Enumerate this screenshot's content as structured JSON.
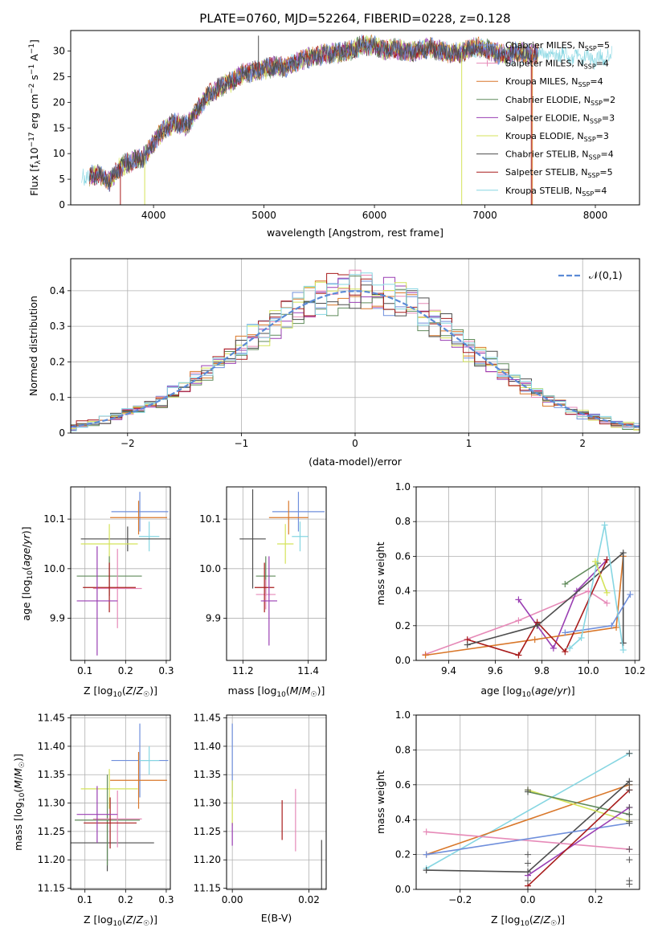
{
  "figure_title": "PLATE=0760, MJD=52264, FIBERID=0228, z=0.128",
  "colors": {
    "chabrier_miles": "#6f8fdc",
    "salpeter_miles": "#e68ab8",
    "kroupa_miles": "#d9772a",
    "chabrier_elodie": "#5f8a5a",
    "salpeter_elodie": "#9a3fb3",
    "kroupa_elodie": "#d4e35a",
    "chabrier_stelib": "#4d4d4d",
    "salpeter_stelib": "#a81c1c",
    "kroupa_stelib": "#86d6e2",
    "normal": "#5b8ad6",
    "grid": "#b0b0b0"
  },
  "chart_data": [
    {
      "id": "spectrum",
      "type": "line",
      "title": "PLATE=0760, MJD=52264, FIBERID=0228, z=0.128",
      "xlabel": "wavelength [Angstrom, rest frame]",
      "ylabel_parts": [
        "Flux [f",
        "λ",
        "10",
        "−17",
        " erg cm",
        "−2",
        " s",
        "−1",
        " A",
        "−1",
        "]"
      ],
      "xlim": [
        3250,
        8400
      ],
      "ylim": [
        0,
        34
      ],
      "xticks": [
        4000,
        5000,
        6000,
        7000,
        8000
      ],
      "yticks": [
        0,
        5,
        10,
        15,
        20,
        25,
        30
      ],
      "grid": false,
      "legend_position": "top-right",
      "legend": [
        {
          "label": "Chabrier MILES, N",
          "sub": "SSP",
          "value": "=5",
          "color": "#6f8fdc",
          "marker": "plus"
        },
        {
          "label": "Salpeter MILES, N",
          "sub": "SSP",
          "value": "=4",
          "color": "#e68ab8",
          "marker": "plus"
        },
        {
          "label": "Kroupa MILES, N",
          "sub": "SSP",
          "value": "=4",
          "color": "#d9772a"
        },
        {
          "label": "Chabrier ELODIE, N",
          "sub": "SSP",
          "value": "=2",
          "color": "#5f8a5a"
        },
        {
          "label": "Salpeter ELODIE, N",
          "sub": "SSP",
          "value": "=3",
          "color": "#9a3fb3"
        },
        {
          "label": "Kroupa ELODIE, N",
          "sub": "SSP",
          "value": "=3",
          "color": "#d4e35a"
        },
        {
          "label": "Chabrier STELIB, N",
          "sub": "SSP",
          "value": "=4",
          "color": "#4d4d4d"
        },
        {
          "label": "Salpeter STELIB, N",
          "sub": "SSP",
          "value": "=5",
          "color": "#a81c1c"
        },
        {
          "label": "Kroupa STELIB, N",
          "sub": "SSP",
          "value": "=4",
          "color": "#86d6e2"
        }
      ],
      "continuum": [
        [
          3350,
          5.4
        ],
        [
          3500,
          6
        ],
        [
          3600,
          4.5
        ],
        [
          3700,
          7.5
        ],
        [
          3800,
          8.5
        ],
        [
          3900,
          9
        ],
        [
          4000,
          12
        ],
        [
          4100,
          15
        ],
        [
          4200,
          16
        ],
        [
          4300,
          15.5
        ],
        [
          4400,
          18.5
        ],
        [
          4500,
          21.5
        ],
        [
          4600,
          23
        ],
        [
          4700,
          24
        ],
        [
          4800,
          25.5
        ],
        [
          4900,
          26
        ],
        [
          5000,
          26.5
        ],
        [
          5100,
          27
        ],
        [
          5200,
          26.8
        ],
        [
          5300,
          28
        ],
        [
          5400,
          28.6
        ],
        [
          5500,
          29.2
        ],
        [
          5600,
          29.5
        ],
        [
          5700,
          29.8
        ],
        [
          5800,
          30.2
        ],
        [
          5900,
          31.2
        ],
        [
          6000,
          31
        ],
        [
          6100,
          30.2
        ],
        [
          6200,
          30.4
        ],
        [
          6300,
          29.8
        ],
        [
          6400,
          30.2
        ],
        [
          6500,
          30.6
        ],
        [
          6600,
          30
        ],
        [
          6700,
          29.5
        ],
        [
          6800,
          29.8
        ],
        [
          6900,
          30.8
        ],
        [
          7000,
          30.5
        ],
        [
          7100,
          29.6
        ],
        [
          7200,
          29.2
        ],
        [
          7300,
          29.8
        ],
        [
          7400,
          29.3
        ],
        [
          7500,
          29.5
        ],
        [
          7600,
          29.6
        ],
        [
          7700,
          29.1
        ],
        [
          7800,
          28.6
        ],
        [
          7900,
          28.5
        ],
        [
          8000,
          28.3
        ],
        [
          8100,
          28.9
        ],
        [
          8150,
          29.2
        ]
      ],
      "spikes": [
        [
          3700,
          0
        ],
        [
          3920,
          0
        ],
        [
          4950,
          33
        ],
        [
          6790,
          0
        ],
        [
          7420,
          0
        ],
        [
          7430,
          0
        ]
      ]
    },
    {
      "id": "residuals",
      "type": "line",
      "xlabel": "(data-model)/error",
      "ylabel": "Normed distribution",
      "xlim": [
        -2.5,
        2.5
      ],
      "ylim": [
        0,
        0.49
      ],
      "xticks": [
        -2,
        -1,
        0,
        1,
        2
      ],
      "yticks": [
        0.0,
        0.1,
        0.2,
        0.3,
        0.4
      ],
      "grid": true,
      "legend_position": "top-right",
      "legend": [
        {
          "label": "𝒩(0,1)",
          "color": "#5b8ad6",
          "style": "dashed"
        }
      ],
      "normal": {
        "mean": 0,
        "sigma": 1
      }
    },
    {
      "id": "age-vs-z",
      "type": "scatter",
      "xlabel": "Z [log₁₀(Z/Z☉)]",
      "ylabel": "age [log₁₀(age/yr)]",
      "xlim": [
        0.065,
        0.31
      ],
      "ylim": [
        9.815,
        10.165
      ],
      "xticks": [
        0.1,
        0.2,
        0.3
      ],
      "xtick_labels": [
        "0.1",
        "0.2",
        "0.3"
      ],
      "yticks": [
        9.9,
        10.0,
        10.1
      ],
      "ytick_labels": [
        "9.9",
        "10.0",
        "10.1"
      ],
      "grid": true,
      "points": [
        {
          "x": 0.235,
          "y": 10.115,
          "xerr": 0.07,
          "yerr": 0.04,
          "c": "#6f8fdc"
        },
        {
          "x": 0.232,
          "y": 10.103,
          "xerr": 0.07,
          "yerr": 0.034,
          "c": "#d9772a"
        },
        {
          "x": 0.258,
          "y": 10.065,
          "xerr": 0.025,
          "yerr": 0.03,
          "c": "#86d6e2"
        },
        {
          "x": 0.205,
          "y": 10.06,
          "xerr": 0.115,
          "yerr": 0.025,
          "c": "#4d4d4d"
        },
        {
          "x": 0.16,
          "y": 10.05,
          "xerr": 0.07,
          "yerr": 0.04,
          "c": "#d4e35a"
        },
        {
          "x": 0.16,
          "y": 9.985,
          "xerr": 0.08,
          "yerr": 0.04,
          "c": "#5f8a5a"
        },
        {
          "x": 0.18,
          "y": 9.96,
          "xerr": 0.06,
          "yerr": 0.08,
          "c": "#e68ab8"
        },
        {
          "x": 0.16,
          "y": 9.962,
          "xerr": 0.065,
          "yerr": 0.05,
          "c": "#a81c1c"
        },
        {
          "x": 0.13,
          "y": 9.935,
          "xerr": 0.05,
          "yerr": 0.11,
          "c": "#9a3fb3"
        }
      ]
    },
    {
      "id": "age-vs-mass",
      "type": "scatter",
      "xlabel": "mass [log₁₀(M/M☉)]",
      "ylabel": "",
      "xlim": [
        11.15,
        11.455
      ],
      "ylim": [
        9.815,
        10.165
      ],
      "xticks": [
        11.2,
        11.4
      ],
      "xtick_labels": [
        "11.2",
        "11.4"
      ],
      "yticks": [
        9.9,
        10.0,
        10.1
      ],
      "ytick_labels": [
        "9.9",
        "10.0",
        "10.1"
      ],
      "grid": true,
      "points": [
        {
          "x": 11.37,
          "y": 10.115,
          "xerr": 0.08,
          "yerr": 0.04,
          "c": "#6f8fdc"
        },
        {
          "x": 11.34,
          "y": 10.103,
          "xerr": 0.06,
          "yerr": 0.034,
          "c": "#d9772a"
        },
        {
          "x": 11.375,
          "y": 10.065,
          "xerr": 0.025,
          "yerr": 0.03,
          "c": "#86d6e2"
        },
        {
          "x": 11.23,
          "y": 10.06,
          "xerr": 0.04,
          "yerr": 0.1,
          "c": "#4d4d4d"
        },
        {
          "x": 11.33,
          "y": 10.05,
          "xerr": 0.025,
          "yerr": 0.04,
          "c": "#d4e35a"
        },
        {
          "x": 11.27,
          "y": 9.985,
          "xerr": 0.03,
          "yerr": 0.04,
          "c": "#5f8a5a"
        },
        {
          "x": 11.27,
          "y": 9.948,
          "xerr": 0.03,
          "yerr": 0.03,
          "c": "#e68ab8"
        },
        {
          "x": 11.266,
          "y": 9.962,
          "xerr": 0.03,
          "yerr": 0.05,
          "c": "#a81c1c"
        },
        {
          "x": 11.28,
          "y": 9.935,
          "xerr": 0.025,
          "yerr": 0.09,
          "c": "#9a3fb3"
        }
      ]
    },
    {
      "id": "weight-vs-age",
      "type": "line",
      "xlabel": "age [log₁₀(age/yr)]",
      "ylabel": "mass weight",
      "xlim": [
        9.26,
        10.22
      ],
      "ylim": [
        0,
        1.0
      ],
      "xticks": [
        9.4,
        9.6,
        9.8,
        10.0,
        10.2
      ],
      "xtick_labels": [
        "9.4",
        "9.6",
        "9.8",
        "10.0",
        "10.2"
      ],
      "yticks": [
        0.0,
        0.2,
        0.4,
        0.6,
        0.8,
        1.0
      ],
      "ytick_labels": [
        "0.0",
        "0.2",
        "0.4",
        "0.6",
        "0.8",
        "1.0"
      ],
      "grid": true,
      "series": [
        {
          "c": "#e68ab8",
          "pts": [
            [
              9.3,
              0.035
            ],
            [
              9.7,
              0.23
            ],
            [
              10.0,
              0.4
            ],
            [
              10.08,
              0.33
            ]
          ]
        },
        {
          "c": "#9a3fb3",
          "pts": [
            [
              9.7,
              0.35
            ],
            [
              9.85,
              0.07
            ],
            [
              9.95,
              0.4
            ],
            [
              10.08,
              0.58
            ]
          ]
        },
        {
          "c": "#d9772a",
          "pts": [
            [
              9.3,
              0.03
            ],
            [
              9.77,
              0.12
            ],
            [
              10.12,
              0.19
            ],
            [
              10.15,
              0.6
            ]
          ]
        },
        {
          "c": "#a81c1c",
          "pts": [
            [
              9.48,
              0.12
            ],
            [
              9.7,
              0.03
            ],
            [
              9.78,
              0.22
            ],
            [
              9.9,
              0.05
            ],
            [
              10.08,
              0.58
            ]
          ]
        },
        {
          "c": "#5f8a5a",
          "pts": [
            [
              9.9,
              0.44
            ],
            [
              10.04,
              0.56
            ]
          ]
        },
        {
          "c": "#4d4d4d",
          "pts": [
            [
              9.48,
              0.09
            ],
            [
              9.78,
              0.2
            ],
            [
              10.15,
              0.62
            ],
            [
              10.15,
              0.1
            ]
          ]
        },
        {
          "c": "#6f8fdc",
          "pts": [
            [
              9.9,
              0.16
            ],
            [
              10.1,
              0.2
            ],
            [
              10.18,
              0.38
            ]
          ]
        },
        {
          "c": "#86d6e2",
          "pts": [
            [
              9.92,
              0.07
            ],
            [
              9.97,
              0.13
            ],
            [
              10.07,
              0.78
            ],
            [
              10.15,
              0.06
            ]
          ]
        },
        {
          "c": "#d4e35a",
          "pts": [
            [
              10.03,
              0.57
            ],
            [
              10.08,
              0.39
            ]
          ]
        }
      ]
    },
    {
      "id": "mass-vs-z",
      "type": "scatter",
      "xlabel": "Z [log₁₀(Z/Z☉)]",
      "ylabel": "mass [log₁₀(M/M☉)]",
      "xlim": [
        0.065,
        0.31
      ],
      "ylim": [
        11.148,
        11.455
      ],
      "xticks": [
        0.1,
        0.2,
        0.3
      ],
      "xtick_labels": [
        "0.1",
        "0.2",
        "0.3"
      ],
      "yticks": [
        11.15,
        11.2,
        11.25,
        11.3,
        11.35,
        11.4,
        11.45
      ],
      "ytick_labels": [
        "11.15",
        "11.20",
        "11.25",
        "11.30",
        "11.35",
        "11.40",
        "11.45"
      ],
      "grid": true,
      "points": [
        {
          "x": 0.235,
          "y": 11.375,
          "xerr": 0.07,
          "yerr": 0.065,
          "c": "#6f8fdc"
        },
        {
          "x": 0.232,
          "y": 11.34,
          "xerr": 0.07,
          "yerr": 0.05,
          "c": "#d9772a"
        },
        {
          "x": 0.258,
          "y": 11.375,
          "xerr": 0.025,
          "yerr": 0.025,
          "c": "#86d6e2"
        },
        {
          "x": 0.155,
          "y": 11.23,
          "xerr": 0.115,
          "yerr": 0.05,
          "c": "#4d4d4d"
        },
        {
          "x": 0.16,
          "y": 11.325,
          "xerr": 0.07,
          "yerr": 0.035,
          "c": "#d4e35a"
        },
        {
          "x": 0.155,
          "y": 11.27,
          "xerr": 0.08,
          "yerr": 0.08,
          "c": "#5f8a5a"
        },
        {
          "x": 0.18,
          "y": 11.272,
          "xerr": 0.06,
          "yerr": 0.05,
          "c": "#e68ab8"
        },
        {
          "x": 0.162,
          "y": 11.265,
          "xerr": 0.065,
          "yerr": 0.045,
          "c": "#a81c1c"
        },
        {
          "x": 0.13,
          "y": 11.28,
          "xerr": 0.05,
          "yerr": 0.05,
          "c": "#9a3fb3"
        }
      ]
    },
    {
      "id": "mass-vs-ebv",
      "type": "scatter",
      "xlabel": "E(B-V)",
      "ylabel": "",
      "xlim": [
        -0.0015,
        0.0245
      ],
      "ylim": [
        11.148,
        11.455
      ],
      "xticks": [
        0.0,
        0.02
      ],
      "xtick_labels": [
        "0.00",
        "0.02"
      ],
      "yticks": [
        11.15,
        11.2,
        11.25,
        11.3,
        11.35,
        11.4,
        11.45
      ],
      "ytick_labels": [
        "11.15",
        "11.20",
        "11.25",
        "11.30",
        "11.35",
        "11.40",
        "11.45"
      ],
      "grid": true,
      "points": [
        {
          "x": 0.0,
          "y": 11.375,
          "xerr": 0,
          "yerr": 0.065,
          "c": "#6f8fdc"
        },
        {
          "x": 0.0,
          "y": 11.3,
          "xerr": 0,
          "yerr": 0.04,
          "c": "#d4e35a"
        },
        {
          "x": 0.0,
          "y": 11.245,
          "xerr": 0,
          "yerr": 0.02,
          "c": "#9a3fb3"
        },
        {
          "x": 0.013,
          "y": 11.27,
          "xerr": 0,
          "yerr": 0.035,
          "c": "#a81c1c"
        },
        {
          "x": 0.0165,
          "y": 11.27,
          "xerr": 0,
          "yerr": 0.055,
          "c": "#e68ab8"
        },
        {
          "x": 0.0233,
          "y": 11.19,
          "xerr": 0,
          "yerr": 0.045,
          "c": "#4d4d4d"
        }
      ]
    },
    {
      "id": "weight-vs-z",
      "type": "line",
      "xlabel": "Z [log₁₀(Z/Z☉)]",
      "ylabel": "mass weight",
      "xlim": [
        -0.33,
        0.33
      ],
      "ylim": [
        0,
        1.0
      ],
      "xticks": [
        -0.2,
        0.0,
        0.2
      ],
      "xtick_labels": [
        "−0.2",
        "0.0",
        "0.2"
      ],
      "yticks": [
        0.0,
        0.2,
        0.4,
        0.6,
        0.8,
        1.0
      ],
      "ytick_labels": [
        "0.0",
        "0.2",
        "0.4",
        "0.6",
        "0.8",
        "1.0"
      ],
      "grid": true,
      "series": [
        {
          "c": "#86d6e2",
          "pts": [
            [
              -0.3,
              0.12
            ],
            [
              0.3,
              0.78
            ]
          ]
        },
        {
          "c": "#d9772a",
          "pts": [
            [
              -0.3,
              0.2
            ],
            [
              0.3,
              0.6
            ]
          ]
        },
        {
          "c": "#4d4d4d",
          "pts": [
            [
              -0.3,
              0.11
            ],
            [
              0.0,
              0.1
            ],
            [
              0.3,
              0.62
            ]
          ]
        },
        {
          "c": "#e68ab8",
          "pts": [
            [
              -0.3,
              0.33
            ],
            [
              0.3,
              0.23
            ]
          ]
        },
        {
          "c": "#6f8fdc",
          "pts": [
            [
              -0.3,
              0.2
            ],
            [
              0.3,
              0.38
            ]
          ]
        },
        {
          "c": "#d4e35a",
          "pts": [
            [
              0.0,
              0.57
            ],
            [
              0.3,
              0.39
            ]
          ]
        },
        {
          "c": "#5f8a5a",
          "pts": [
            [
              0.0,
              0.56
            ],
            [
              0.3,
              0.43
            ]
          ]
        },
        {
          "c": "#9a3fb3",
          "pts": [
            [
              0.0,
              0.08
            ],
            [
              0.3,
              0.47
            ]
          ]
        },
        {
          "c": "#a81c1c",
          "pts": [
            [
              0.0,
              0.02
            ],
            [
              0.3,
              0.57
            ]
          ]
        }
      ],
      "vertical_markers": [
        {
          "x": 0.0,
          "values": [
            0.0,
            0.05,
            0.1,
            0.15,
            0.2,
            0.56,
            0.57
          ]
        },
        {
          "x": 0.3,
          "values": [
            0.03,
            0.05,
            0.17,
            0.23,
            0.38,
            0.39,
            0.43,
            0.47,
            0.57,
            0.6,
            0.62,
            0.78
          ]
        }
      ]
    }
  ]
}
